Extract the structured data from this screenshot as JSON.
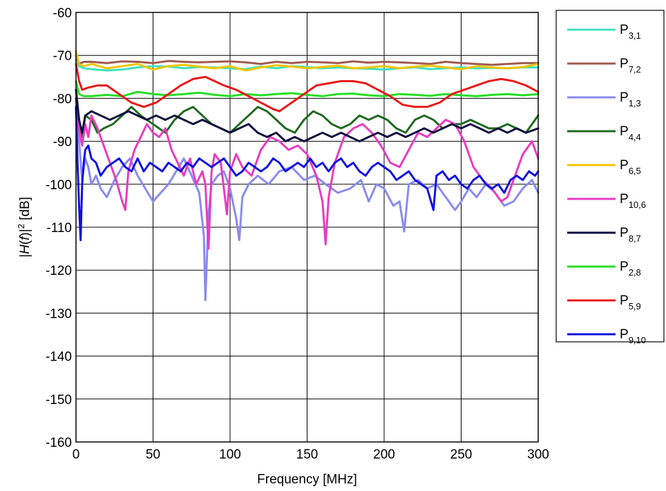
{
  "chart_data": {
    "type": "line",
    "title": "",
    "xlabel": "Frequency [MHz]",
    "ylabel_parts": {
      "a": "|",
      "b": "H",
      "c": "(",
      "d": "f",
      "e": ")|",
      "sup": "2",
      "f": " [dB]"
    },
    "xlim": [
      0,
      300
    ],
    "ylim": [
      -160,
      -60
    ],
    "xticks": [
      "0",
      "50",
      "100",
      "150",
      "200",
      "250",
      "300"
    ],
    "yticks": [
      "-60",
      "-70",
      "-80",
      "-90",
      "-100",
      "-110",
      "-120",
      "-130",
      "-140",
      "-150",
      "-160"
    ],
    "grid": true,
    "legend_position": "right",
    "series": [
      {
        "label": "P",
        "sub": "3,1",
        "color": "#40e0c0",
        "x": [
          0,
          2,
          5,
          10,
          20,
          30,
          40,
          50,
          60,
          70,
          80,
          90,
          100,
          110,
          120,
          130,
          140,
          150,
          160,
          170,
          180,
          190,
          200,
          210,
          220,
          230,
          240,
          250,
          260,
          270,
          280,
          290,
          300
        ],
        "y": [
          -71,
          -72.5,
          -73,
          -73.2,
          -73.5,
          -73.3,
          -72.8,
          -72.5,
          -72.6,
          -73,
          -72.7,
          -72.8,
          -73,
          -73.2,
          -72.6,
          -73,
          -72.5,
          -72.7,
          -73,
          -72.8,
          -73,
          -73.1,
          -73.3,
          -73,
          -72.8,
          -73.2,
          -73,
          -72.8,
          -73,
          -72.9,
          -73,
          -72.8,
          -72.8
        ]
      },
      {
        "label": "P",
        "sub": "7,2",
        "color": "#a05a50",
        "x": [
          0,
          2,
          5,
          10,
          20,
          30,
          40,
          50,
          60,
          70,
          80,
          90,
          100,
          110,
          120,
          130,
          140,
          150,
          160,
          170,
          180,
          190,
          200,
          210,
          220,
          230,
          240,
          250,
          260,
          270,
          280,
          290,
          300
        ],
        "y": [
          -70,
          -72,
          -71.5,
          -71.5,
          -71.8,
          -71.4,
          -71.5,
          -71.8,
          -71.3,
          -71.5,
          -71.6,
          -71.5,
          -71.4,
          -71.6,
          -72,
          -71.5,
          -71.8,
          -71.5,
          -71.6,
          -71.8,
          -71.4,
          -71.7,
          -71.5,
          -71.6,
          -71.8,
          -72,
          -71.5,
          -71.8,
          -72,
          -72.2,
          -72,
          -71.8,
          -71.8
        ]
      },
      {
        "label": "P",
        "sub": "1,3",
        "color": "#8a8af0",
        "x": [
          0,
          2,
          4,
          6,
          8,
          10,
          13,
          16,
          20,
          25,
          30,
          35,
          40,
          45,
          50,
          55,
          60,
          65,
          70,
          75,
          80,
          83,
          84,
          86,
          88,
          92,
          96,
          100,
          104,
          106,
          108,
          112,
          118,
          125,
          132,
          140,
          148,
          155,
          162,
          170,
          178,
          185,
          190,
          195,
          200,
          206,
          210,
          213,
          216,
          222,
          228,
          234,
          240,
          246,
          250,
          255,
          260,
          266,
          272,
          278,
          284,
          290,
          296,
          300
        ],
        "y": [
          -82,
          -90,
          -99,
          -94,
          -96,
          -100,
          -98,
          -101,
          -103,
          -99,
          -96,
          -94,
          -98,
          -101,
          -104,
          -102,
          -100,
          -97,
          -94,
          -98,
          -102,
          -112,
          -127,
          -107,
          -100,
          -98,
          -97,
          -101,
          -108,
          -113,
          -103,
          -100,
          -98,
          -100,
          -97,
          -96,
          -99,
          -98,
          -100,
          -102,
          -101,
          -99,
          -104,
          -100,
          -101,
          -105,
          -104,
          -111,
          -100,
          -99,
          -101,
          -100,
          -103,
          -106,
          -104,
          -101,
          -103,
          -100,
          -102,
          -105,
          -104,
          -101,
          -99,
          -102
        ]
      },
      {
        "label": "P",
        "sub": "4,4",
        "color": "#1e6a1e",
        "x": [
          0,
          2,
          4,
          6,
          10,
          14,
          18,
          24,
          30,
          36,
          42,
          50,
          58,
          64,
          70,
          76,
          82,
          88,
          94,
          100,
          106,
          112,
          118,
          124,
          130,
          136,
          142,
          148,
          154,
          160,
          166,
          172,
          178,
          184,
          190,
          196,
          202,
          208,
          214,
          220,
          226,
          232,
          238,
          244,
          250,
          256,
          262,
          268,
          274,
          280,
          286,
          292,
          300
        ],
        "y": [
          -80,
          -86,
          -89,
          -84,
          -85,
          -88,
          -87,
          -86,
          -84,
          -82,
          -84,
          -86,
          -88,
          -85,
          -83,
          -82,
          -84,
          -86,
          -87,
          -88,
          -86,
          -84,
          -82,
          -83,
          -85,
          -87,
          -88,
          -85,
          -83,
          -84,
          -86,
          -87,
          -86,
          -84,
          -85,
          -84,
          -85,
          -87,
          -88,
          -85,
          -84,
          -85,
          -87,
          -86,
          -86,
          -85,
          -86,
          -87,
          -87,
          -86,
          -87,
          -88,
          -84
        ]
      },
      {
        "label": "P",
        "sub": "6,5",
        "color": "#f2c400",
        "x": [
          0,
          2,
          5,
          10,
          20,
          30,
          40,
          50,
          60,
          70,
          80,
          90,
          100,
          110,
          120,
          130,
          140,
          150,
          160,
          170,
          180,
          190,
          200,
          210,
          220,
          230,
          240,
          250,
          260,
          270,
          280,
          290,
          300
        ],
        "y": [
          -69,
          -72,
          -72.5,
          -72,
          -73,
          -72.5,
          -72,
          -73.3,
          -72.5,
          -72.2,
          -72.6,
          -73,
          -72.5,
          -73.5,
          -72.8,
          -72.3,
          -72.6,
          -73,
          -72.7,
          -72.4,
          -73,
          -72.8,
          -72.5,
          -73,
          -72.6,
          -72.4,
          -72.8,
          -73.2,
          -72.5,
          -72.8,
          -73,
          -72.7,
          -72
        ]
      },
      {
        "label": "P",
        "sub": "10,6",
        "color": "#e83cc0",
        "x": [
          0,
          2,
          4,
          6,
          8,
          10,
          14,
          18,
          22,
          26,
          30,
          32,
          34,
          38,
          42,
          46,
          50,
          54,
          58,
          62,
          66,
          70,
          74,
          78,
          82,
          84,
          86,
          88,
          90,
          94,
          98,
          100,
          104,
          108,
          114,
          120,
          126,
          132,
          138,
          144,
          150,
          156,
          160,
          162,
          164,
          168,
          174,
          180,
          186,
          192,
          198,
          204,
          210,
          216,
          222,
          228,
          234,
          240,
          246,
          252,
          258,
          264,
          270,
          276,
          280,
          284,
          290,
          296,
          300
        ],
        "y": [
          -82,
          -87,
          -91,
          -86,
          -89,
          -84,
          -87,
          -91,
          -95,
          -99,
          -104,
          -106,
          -97,
          -92,
          -89,
          -86,
          -88,
          -89,
          -87,
          -92,
          -95,
          -98,
          -94,
          -100,
          -97,
          -100,
          -115,
          -97,
          -93,
          -95,
          -107,
          -97,
          -93,
          -96,
          -98,
          -92,
          -89,
          -90,
          -92,
          -91,
          -93,
          -98,
          -104,
          -114,
          -103,
          -95,
          -89,
          -87,
          -86,
          -88,
          -91,
          -95,
          -96,
          -92,
          -88,
          -89,
          -87,
          -85,
          -86,
          -90,
          -96,
          -99,
          -101,
          -104,
          -103,
          -99,
          -93,
          -90,
          -94
        ]
      },
      {
        "label": "P",
        "sub": "8,7",
        "color": "#0c0c3c",
        "x": [
          0,
          2,
          4,
          6,
          10,
          16,
          22,
          28,
          34,
          40,
          46,
          52,
          58,
          64,
          70,
          76,
          82,
          88,
          94,
          100,
          106,
          112,
          118,
          124,
          130,
          136,
          142,
          148,
          154,
          160,
          166,
          172,
          178,
          184,
          190,
          196,
          202,
          208,
          214,
          220,
          226,
          232,
          238,
          244,
          250,
          256,
          262,
          268,
          274,
          280,
          286,
          292,
          300
        ],
        "y": [
          -78,
          -85,
          -88,
          -84,
          -83,
          -84,
          -85,
          -84,
          -83,
          -84,
          -85,
          -84,
          -85,
          -84,
          -85,
          -86,
          -85,
          -86,
          -87,
          -88,
          -87,
          -86,
          -88,
          -89,
          -88,
          -90,
          -89,
          -90,
          -89,
          -88,
          -89,
          -88,
          -89,
          -90,
          -89,
          -88,
          -89,
          -88,
          -89,
          -88,
          -87,
          -88,
          -87,
          -86,
          -87,
          -86,
          -87,
          -88,
          -87,
          -88,
          -87,
          -88,
          -87
        ]
      },
      {
        "label": "P",
        "sub": "2,8",
        "color": "#22e022",
        "x": [
          0,
          2,
          5,
          10,
          20,
          30,
          40,
          50,
          60,
          70,
          80,
          90,
          100,
          110,
          120,
          130,
          140,
          150,
          160,
          170,
          180,
          190,
          200,
          210,
          220,
          230,
          240,
          250,
          260,
          270,
          280,
          290,
          300
        ],
        "y": [
          -76,
          -79,
          -79.5,
          -79.5,
          -79.2,
          -79.5,
          -78.5,
          -79,
          -79.3,
          -79,
          -78.7,
          -79.2,
          -79.5,
          -79,
          -79.3,
          -79,
          -78.8,
          -79.2,
          -79.5,
          -79,
          -78.9,
          -79.3,
          -79.5,
          -79,
          -79.2,
          -79.4,
          -79,
          -79.3,
          -79.5,
          -79.2,
          -79,
          -79.3,
          -79
        ]
      },
      {
        "label": "P",
        "sub": "5,9",
        "color": "#e81818",
        "x": [
          0,
          2,
          4,
          8,
          14,
          20,
          28,
          36,
          44,
          52,
          60,
          68,
          76,
          84,
          90,
          96,
          104,
          112,
          120,
          128,
          132,
          136,
          140,
          148,
          156,
          164,
          172,
          180,
          188,
          196,
          204,
          212,
          220,
          228,
          236,
          244,
          252,
          260,
          268,
          276,
          284,
          292,
          300
        ],
        "y": [
          -72,
          -76,
          -78,
          -77.5,
          -77,
          -77,
          -79,
          -81,
          -82,
          -81,
          -79,
          -77,
          -75.5,
          -75,
          -76,
          -77,
          -78,
          -79.5,
          -81,
          -82.5,
          -83,
          -82,
          -81,
          -79,
          -77,
          -76.5,
          -76,
          -76,
          -76.5,
          -78,
          -79.5,
          -81.5,
          -82,
          -82,
          -81,
          -79,
          -78,
          -77,
          -76,
          -75.5,
          -76,
          -77,
          -78.5
        ]
      },
      {
        "label": "P",
        "sub": "9,10",
        "color": "#1010e0",
        "x": [
          0,
          1,
          2,
          3,
          4,
          5,
          6,
          8,
          10,
          13,
          16,
          20,
          24,
          28,
          32,
          36,
          40,
          44,
          48,
          52,
          56,
          60,
          64,
          68,
          72,
          76,
          80,
          84,
          88,
          92,
          96,
          100,
          104,
          108,
          112,
          116,
          120,
          124,
          128,
          132,
          136,
          140,
          144,
          148,
          152,
          156,
          160,
          164,
          168,
          172,
          176,
          180,
          184,
          188,
          192,
          196,
          200,
          204,
          208,
          212,
          216,
          220,
          224,
          228,
          232,
          234,
          238,
          242,
          246,
          250,
          254,
          258,
          262,
          266,
          270,
          274,
          278,
          282,
          286,
          290,
          294,
          298,
          300
        ],
        "y": [
          -82,
          -95,
          -105,
          -113,
          -100,
          -95,
          -92,
          -91,
          -94,
          -95,
          -98,
          -96,
          -95,
          -94,
          -96,
          -97,
          -94,
          -97,
          -95,
          -96,
          -97,
          -95,
          -96,
          -97,
          -95,
          -96,
          -94,
          -95,
          -96,
          -95,
          -94,
          -96,
          -98,
          -97,
          -95,
          -96,
          -97,
          -96,
          -94,
          -95,
          -97,
          -96,
          -95,
          -96,
          -94,
          -96,
          -95,
          -97,
          -95,
          -94,
          -96,
          -95,
          -97,
          -98,
          -96,
          -95,
          -96,
          -97,
          -99,
          -98,
          -97,
          -99,
          -100,
          -101,
          -106,
          -98,
          -97,
          -99,
          -98,
          -100,
          -101,
          -99,
          -98,
          -100,
          -101,
          -100,
          -102,
          -99,
          -98,
          -99,
          -97,
          -98,
          -97
        ]
      }
    ]
  }
}
